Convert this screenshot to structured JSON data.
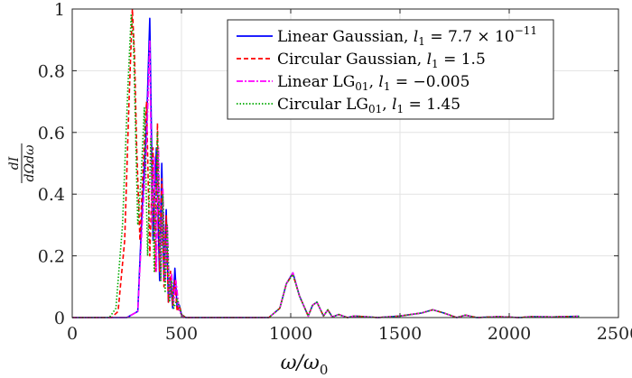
{
  "chart_data": {
    "type": "line",
    "xlabel": "ω/ω",
    "xlabel_sub": "0",
    "ylabel_num": "dI",
    "ylabel_den": "dΩdω",
    "xlim": [
      0,
      2500
    ],
    "ylim": [
      0,
      1
    ],
    "xticks": [
      0,
      500,
      1000,
      1500,
      2000,
      2500
    ],
    "xtick_labels": [
      "0",
      "500",
      "1000",
      "1500",
      "2000",
      "2500"
    ],
    "yticks": [
      0,
      0.2,
      0.4,
      0.6,
      0.8,
      1
    ],
    "ytick_labels": [
      "0",
      "0.2",
      "0.4",
      "0.6",
      "0.8",
      "1"
    ],
    "grid": true,
    "legend_position": "top-right",
    "series": [
      {
        "name": "Linear Gaussian, l1 = 7.7 × 10^-11",
        "legend": {
          "pre": "Linear Gaussian, ",
          "var": "l",
          "sub": "1",
          "post": " = 7.7 × 10",
          "sup": "−11"
        },
        "color": "#0000ff",
        "dash": "solid",
        "x": [
          0,
          250,
          300,
          320,
          340,
          355,
          370,
          385,
          400,
          410,
          420,
          430,
          440,
          450,
          460,
          470,
          480,
          490,
          500,
          520,
          900,
          950,
          980,
          1010,
          1040,
          1080,
          1100,
          1120,
          1150,
          1170,
          1190,
          1220,
          1260,
          1290,
          1400,
          1500,
          1600,
          1650,
          1700,
          1760,
          1800,
          1850,
          1950,
          2050,
          2100,
          2200,
          2320
        ],
        "y": [
          0,
          0,
          0.02,
          0.35,
          0.62,
          0.97,
          0.25,
          0.55,
          0.12,
          0.5,
          0.12,
          0.35,
          0.05,
          0.12,
          0.03,
          0.16,
          0.03,
          0.04,
          0.01,
          0.0,
          0.0,
          0.03,
          0.11,
          0.145,
          0.07,
          0.005,
          0.04,
          0.05,
          0.005,
          0.025,
          0.002,
          0.01,
          0.0,
          0.005,
          0.0,
          0.005,
          0.015,
          0.025,
          0.015,
          0.0,
          0.008,
          0.0,
          0.003,
          0.0,
          0.003,
          0.002,
          0.004
        ]
      },
      {
        "name": "Circular Gaussian, l1 = 1.5",
        "legend": {
          "pre": "Circular Gaussian, ",
          "var": "l",
          "sub": "1",
          "post": " = 1.5",
          "sup": ""
        },
        "color": "#ff0000",
        "dash": "5,3",
        "x": [
          0,
          180,
          210,
          240,
          260,
          275,
          285,
          295,
          310,
          325,
          340,
          355,
          370,
          380,
          390,
          400,
          410,
          420,
          430,
          440,
          450,
          460,
          470,
          480,
          490,
          500,
          520,
          900,
          950,
          980,
          1010,
          1040,
          1080,
          1100,
          1120,
          1150,
          1170,
          1190,
          1220,
          1260,
          1290,
          1400,
          1500,
          1600,
          1650,
          1700,
          1760,
          1800,
          1850,
          1950,
          2050,
          2100,
          2200,
          2320
        ],
        "y": [
          0,
          0,
          0.02,
          0.25,
          0.7,
          1.0,
          0.85,
          0.55,
          0.25,
          0.5,
          0.7,
          0.2,
          0.55,
          0.15,
          0.63,
          0.15,
          0.45,
          0.1,
          0.33,
          0.05,
          0.15,
          0.04,
          0.12,
          0.02,
          0.04,
          0.01,
          0.0,
          0.0,
          0.03,
          0.11,
          0.14,
          0.07,
          0.005,
          0.04,
          0.05,
          0.005,
          0.025,
          0.002,
          0.01,
          0.0,
          0.005,
          0.0,
          0.005,
          0.015,
          0.025,
          0.015,
          0.0,
          0.008,
          0.0,
          0.003,
          0.0,
          0.003,
          0.002,
          0.004
        ]
      },
      {
        "name": "Linear LG01, l1 = −0.005",
        "legend": {
          "pre": "Linear LG",
          "presub": "01",
          "mid": ", ",
          "var": "l",
          "sub": "1",
          "post": " = −0.005",
          "sup": ""
        },
        "color": "#ff00ff",
        "dash": "7,2,2,2",
        "x": [
          0,
          250,
          300,
          320,
          340,
          355,
          365,
          375,
          385,
          395,
          405,
          415,
          425,
          435,
          445,
          455,
          465,
          475,
          490,
          510,
          900,
          950,
          980,
          1010,
          1040,
          1080,
          1100,
          1120,
          1150,
          1170,
          1190,
          1220,
          1260,
          1290,
          1400,
          1500,
          1600,
          1650,
          1700,
          1760,
          1800,
          1850,
          1950,
          2050,
          2100,
          2200,
          2320
        ],
        "y": [
          0,
          0,
          0.02,
          0.3,
          0.55,
          0.9,
          0.3,
          0.52,
          0.15,
          0.55,
          0.12,
          0.42,
          0.12,
          0.3,
          0.06,
          0.14,
          0.05,
          0.12,
          0.02,
          0.0,
          0.0,
          0.03,
          0.11,
          0.145,
          0.07,
          0.005,
          0.04,
          0.05,
          0.005,
          0.025,
          0.002,
          0.01,
          0.0,
          0.005,
          0.0,
          0.005,
          0.015,
          0.025,
          0.015,
          0.0,
          0.008,
          0.0,
          0.003,
          0.0,
          0.003,
          0.002,
          0.004
        ]
      },
      {
        "name": "Circular LG01, l1 = 1.45",
        "legend": {
          "pre": "Circular LG",
          "presub": "01",
          "mid": ", ",
          "var": "l",
          "sub": "1",
          "post": " = 1.45",
          "sup": ""
        },
        "color": "#00aa00",
        "dash": "1.5,2",
        "x": [
          0,
          170,
          200,
          230,
          255,
          270,
          280,
          290,
          300,
          315,
          330,
          345,
          360,
          375,
          390,
          405,
          415,
          425,
          435,
          445,
          455,
          465,
          480,
          500,
          520,
          900,
          950,
          980,
          1010,
          1040,
          1080,
          1100,
          1120,
          1150,
          1170,
          1190,
          1220,
          1260,
          1290,
          1400,
          1500,
          1600,
          1650,
          1700,
          1760,
          1800,
          1850,
          1950,
          2050,
          2100,
          2200,
          2320
        ],
        "y": [
          0,
          0,
          0.03,
          0.3,
          0.75,
          0.98,
          0.9,
          0.6,
          0.3,
          0.45,
          0.68,
          0.2,
          0.58,
          0.15,
          0.6,
          0.12,
          0.4,
          0.08,
          0.3,
          0.05,
          0.12,
          0.03,
          0.06,
          0.01,
          0.0,
          0.0,
          0.03,
          0.11,
          0.14,
          0.07,
          0.005,
          0.04,
          0.05,
          0.005,
          0.025,
          0.002,
          0.01,
          0.0,
          0.005,
          0.0,
          0.005,
          0.015,
          0.025,
          0.015,
          0.0,
          0.008,
          0.0,
          0.003,
          0.0,
          0.003,
          0.002,
          0.004
        ]
      }
    ]
  }
}
